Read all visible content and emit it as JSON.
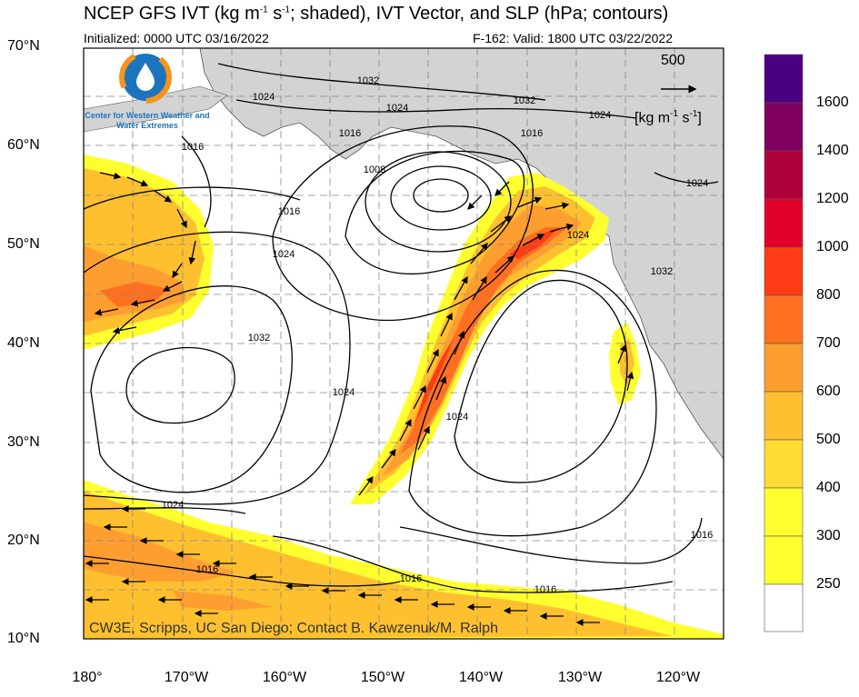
{
  "header": {
    "title_prefix": "NCEP GFS IVT (kg m",
    "title_sup1": "-1",
    "title_mid": " s",
    "title_sup2": "-1",
    "title_suffix": "; shaded), IVT Vector, and SLP (hPa; contours)",
    "initialized": "Initialized: 0000 UTC 03/16/2022",
    "valid": "F-162: Valid: 1800 UTC 03/22/2022"
  },
  "logo": {
    "icon": "cw3e-water-drop-logo",
    "text": "Center for Western Weather and Water Extremes"
  },
  "credit": "CW3E, Scripps, UC San Diego; Contact B. Kawzenuk/M. Ralph",
  "reference_vector": {
    "value": "500",
    "unit_prefix": "[kg m",
    "unit_sup1": "-1",
    "unit_mid": " s",
    "unit_sup2": "-1",
    "unit_suffix": "]"
  },
  "axes": {
    "lat_labels": [
      "70°N",
      "60°N",
      "50°N",
      "40°N",
      "30°N",
      "20°N",
      "10°N"
    ],
    "lon_labels": [
      "180°",
      "170°W",
      "160°W",
      "150°W",
      "140°W",
      "130°W",
      "120°W"
    ]
  },
  "colorbar": {
    "labels": [
      "1600",
      "1400",
      "1200",
      "1000",
      "800",
      "700",
      "600",
      "500",
      "400",
      "300",
      "250"
    ],
    "colors": [
      "#4b0082",
      "#800060",
      "#b0003a",
      "#e0002a",
      "#ff3c14",
      "#ff7020",
      "#ff9e30",
      "#ffc030",
      "#ffdc34",
      "#ffff30",
      "#ffffff"
    ]
  },
  "contour_labels": [
    "1032",
    "1024",
    "1032",
    "1024",
    "1024",
    "1016",
    "1016",
    "1008",
    "1016",
    "1024",
    "1032",
    "1024",
    "1024",
    "1032",
    "1016",
    "1024",
    "1024",
    "1016",
    "1016",
    "1016",
    "1016",
    "1024"
  ],
  "colors": {
    "land": "#d3d3d3",
    "ocean": "#ffffff",
    "contour": "#000000",
    "grid": "#888888"
  }
}
